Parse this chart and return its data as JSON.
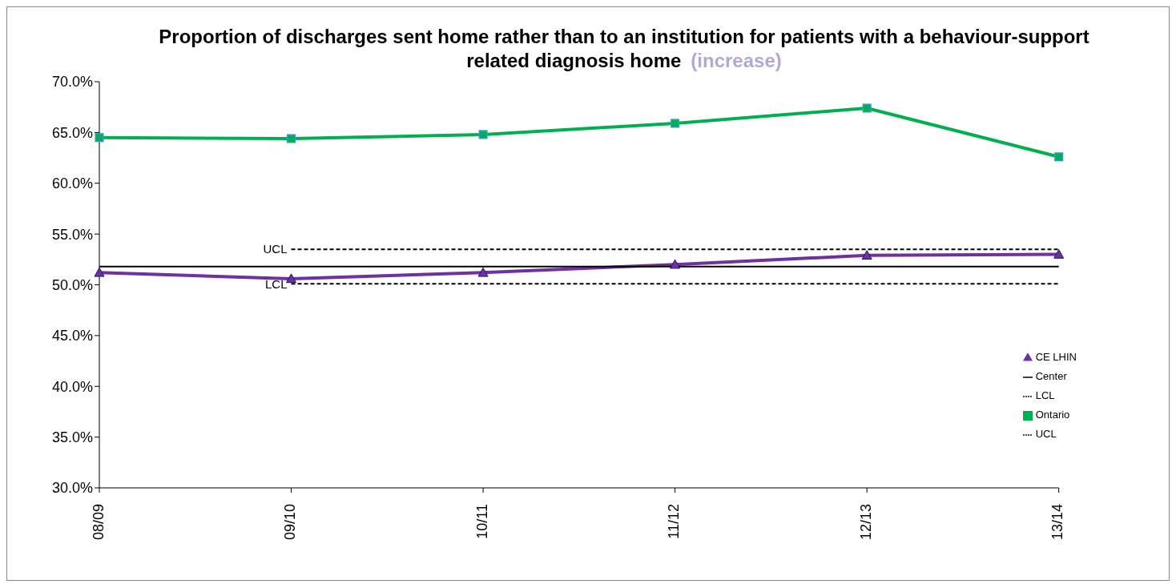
{
  "chart_data": {
    "type": "line",
    "title": "Proportion of discharges sent home rather than to an institution for patients with a behaviour-support related diagnosis home",
    "annotations": [
      "(increase)",
      {
        "text": "UCL",
        "x": "09/10",
        "y": 53.5
      },
      {
        "text": "LCL",
        "x": "09/10",
        "y": 50.1
      }
    ],
    "categories": [
      "08/09",
      "09/10",
      "10/11",
      "11/12",
      "12/13",
      "13/14"
    ],
    "series": [
      {
        "name": "CE LHIN",
        "color": "#7030a0",
        "marker": "triangle",
        "values": [
          51.2,
          50.6,
          51.2,
          52.0,
          52.9,
          53.0
        ]
      },
      {
        "name": "Center",
        "color": "#000000",
        "marker": "none",
        "values": [
          51.8,
          51.8,
          51.8,
          51.8,
          51.8,
          51.8
        ]
      },
      {
        "name": "UCL",
        "color": "#000000",
        "marker": "none",
        "line_style": "dashed",
        "values": [
          null,
          53.5,
          53.5,
          53.5,
          53.5,
          53.5
        ]
      },
      {
        "name": "LCL",
        "color": "#000000",
        "marker": "none",
        "line_style": "dashed",
        "values": [
          null,
          50.1,
          50.1,
          50.1,
          50.1,
          50.1
        ]
      },
      {
        "name": "Ontario",
        "color": "#00b050",
        "marker": "square",
        "values": [
          64.5,
          64.4,
          64.8,
          65.9,
          67.4,
          62.6
        ]
      }
    ],
    "ylim": [
      30,
      70
    ],
    "yticks": [
      {
        "value": 30,
        "label": "30.0%"
      },
      {
        "value": 35,
        "label": "35.0%"
      },
      {
        "value": 40,
        "label": "40.0%"
      },
      {
        "value": 45,
        "label": "45.0%"
      },
      {
        "value": 50,
        "label": "50.0%"
      },
      {
        "value": 55,
        "label": "55.0%"
      },
      {
        "value": 60,
        "label": "60.0%"
      },
      {
        "value": 65,
        "label": "65.0%"
      },
      {
        "value": 70,
        "label": "70.0%"
      }
    ],
    "grid": false,
    "legend": "right"
  }
}
